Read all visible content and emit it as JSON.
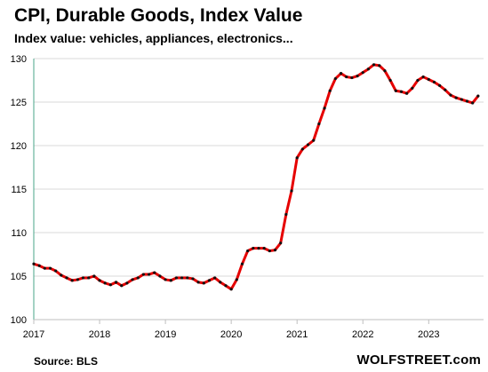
{
  "chart_data": {
    "type": "line",
    "title": "CPI, Durable Goods,  Index Value",
    "subtitle": "Index value: vehicles, appliances, electronics...",
    "xlabel": "",
    "ylabel": "",
    "x_ticks": [
      "2017",
      "2018",
      "2019",
      "2020",
      "2021",
      "2022",
      "2023"
    ],
    "y_ticks": [
      100,
      105,
      110,
      115,
      120,
      125,
      130
    ],
    "ylim": [
      100,
      130
    ],
    "xlim": [
      "2017-01",
      "2023-11"
    ],
    "grid": "horizontal",
    "series": [
      {
        "color": "#e60000",
        "marker_color": "#111111",
        "x": [
          "2017-01",
          "2017-02",
          "2017-03",
          "2017-04",
          "2017-05",
          "2017-06",
          "2017-07",
          "2017-08",
          "2017-09",
          "2017-10",
          "2017-11",
          "2017-12",
          "2018-01",
          "2018-02",
          "2018-03",
          "2018-04",
          "2018-05",
          "2018-06",
          "2018-07",
          "2018-08",
          "2018-09",
          "2018-10",
          "2018-11",
          "2018-12",
          "2019-01",
          "2019-02",
          "2019-03",
          "2019-04",
          "2019-05",
          "2019-06",
          "2019-07",
          "2019-08",
          "2019-09",
          "2019-10",
          "2019-11",
          "2019-12",
          "2020-01",
          "2020-02",
          "2020-03",
          "2020-04",
          "2020-05",
          "2020-06",
          "2020-07",
          "2020-08",
          "2020-09",
          "2020-10",
          "2020-11",
          "2020-12",
          "2021-01",
          "2021-02",
          "2021-03",
          "2021-04",
          "2021-05",
          "2021-06",
          "2021-07",
          "2021-08",
          "2021-09",
          "2021-10",
          "2021-11",
          "2021-12",
          "2022-01",
          "2022-02",
          "2022-03",
          "2022-04",
          "2022-05",
          "2022-06",
          "2022-07",
          "2022-08",
          "2022-09",
          "2022-10",
          "2022-11",
          "2022-12",
          "2023-01",
          "2023-02",
          "2023-03",
          "2023-04",
          "2023-05",
          "2023-06",
          "2023-07",
          "2023-08",
          "2023-09",
          "2023-10"
        ],
        "values": [
          106.4,
          106.2,
          105.9,
          105.9,
          105.6,
          105.1,
          104.8,
          104.5,
          104.6,
          104.8,
          104.8,
          105.0,
          104.5,
          104.2,
          104.0,
          104.3,
          103.9,
          104.2,
          104.6,
          104.8,
          105.2,
          105.2,
          105.4,
          105.0,
          104.6,
          104.5,
          104.8,
          104.8,
          104.8,
          104.7,
          104.3,
          104.2,
          104.5,
          104.8,
          104.3,
          103.9,
          103.5,
          104.6,
          106.4,
          107.9,
          108.2,
          108.2,
          108.2,
          107.9,
          108.0,
          108.8,
          112.1,
          114.8,
          118.6,
          119.6,
          120.1,
          120.6,
          122.5,
          124.3,
          126.3,
          127.7,
          128.3,
          127.9,
          127.8,
          128.0,
          128.4,
          128.8,
          129.3,
          129.2,
          128.6,
          127.5,
          126.3,
          126.2,
          126.0,
          126.6,
          127.5,
          127.9,
          127.6,
          127.3,
          126.9,
          126.4,
          125.8,
          125.5,
          125.3,
          125.1,
          124.9,
          125.7
        ]
      }
    ]
  },
  "footer": {
    "source": "Source: BLS",
    "brand": "WOLFSTREET.com"
  }
}
